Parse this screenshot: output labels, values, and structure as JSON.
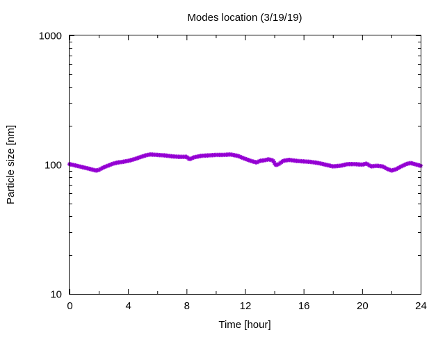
{
  "chart_data": {
    "type": "line",
    "title": "Modes location (3/19/19)",
    "xlabel": "Time [hour]",
    "ylabel": "Particle size [nm]",
    "x_scale": "linear",
    "y_scale": "log",
    "xlim": [
      0,
      24
    ],
    "ylim": [
      10,
      1000
    ],
    "x_ticks": [
      {
        "value": 0,
        "label": "0"
      },
      {
        "value": 4,
        "label": "4"
      },
      {
        "value": 8,
        "label": "8"
      },
      {
        "value": 12,
        "label": "12"
      },
      {
        "value": 16,
        "label": "16"
      },
      {
        "value": 20,
        "label": "20"
      },
      {
        "value": 24,
        "label": "24"
      }
    ],
    "y_ticks": [
      {
        "value": 10,
        "label": "10"
      },
      {
        "value": 100,
        "label": "100"
      },
      {
        "value": 1000,
        "label": "1000"
      }
    ],
    "grid": false,
    "legend": "none",
    "series": [
      {
        "color": "#9400d3",
        "marker": "star",
        "x": [
          0,
          0.5,
          1.0,
          1.5,
          1.8,
          2.0,
          2.3,
          2.7,
          3.0,
          3.3,
          3.6,
          4.0,
          4.4,
          4.8,
          5.2,
          5.5,
          6.0,
          6.5,
          7.0,
          7.5,
          8.0,
          8.2,
          8.5,
          9.0,
          9.5,
          10.0,
          10.5,
          11.0,
          11.5,
          12.0,
          12.5,
          12.8,
          13.0,
          13.3,
          13.6,
          13.9,
          14.1,
          14.3,
          14.6,
          15.0,
          15.5,
          16.0,
          16.5,
          17.0,
          17.5,
          18.0,
          18.5,
          19.0,
          19.5,
          20.0,
          20.3,
          20.6,
          21.0,
          21.4,
          21.7,
          22.0,
          22.3,
          22.6,
          23.0,
          23.3,
          23.6,
          24.0
        ],
        "y": [
          101,
          98,
          95,
          92,
          90,
          91,
          95,
          99,
          102,
          104,
          105,
          107,
          110,
          114,
          118,
          120,
          119,
          118,
          116,
          115,
          115,
          110,
          114,
          117,
          118,
          119,
          119,
          120,
          117,
          111,
          106,
          104,
          107,
          108,
          110,
          108,
          99,
          101,
          107,
          109,
          107,
          106,
          105,
          103,
          100,
          97,
          98,
          101,
          101,
          100,
          102,
          97,
          98,
          97,
          93,
          90,
          92,
          96,
          101,
          103,
          101,
          98
        ]
      }
    ]
  }
}
